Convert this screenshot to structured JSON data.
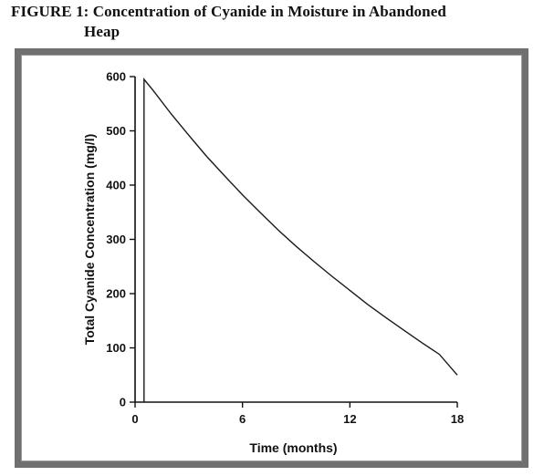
{
  "figure": {
    "title_line1": "FIGURE 1: Concentration of Cyanide in Moisture in Abandoned",
    "title_line2": "Heap"
  },
  "chart_data": {
    "type": "line",
    "title": "FIGURE 1: Concentration of Cyanide in Moisture in Abandoned Heap",
    "xlabel": "Time (months)",
    "ylabel": "Total Cyanide Concentration (mg/l)",
    "xlim": [
      0,
      18
    ],
    "ylim": [
      0,
      600
    ],
    "xticks": [
      0,
      6,
      12,
      18
    ],
    "yticks": [
      0,
      100,
      200,
      300,
      400,
      500,
      600
    ],
    "grid": false,
    "line_color": "#1a1a1a",
    "series": [
      {
        "x": [
          0.5,
          0.5,
          1,
          2,
          3,
          4,
          5,
          6,
          7,
          8,
          9,
          10,
          11,
          12,
          13,
          14,
          15,
          16,
          17,
          18
        ],
        "y": [
          0,
          595,
          575,
          532,
          492,
          453,
          417,
          382,
          349,
          317,
          287,
          259,
          232,
          206,
          180,
          156,
          133,
          110,
          88,
          50
        ]
      }
    ]
  }
}
